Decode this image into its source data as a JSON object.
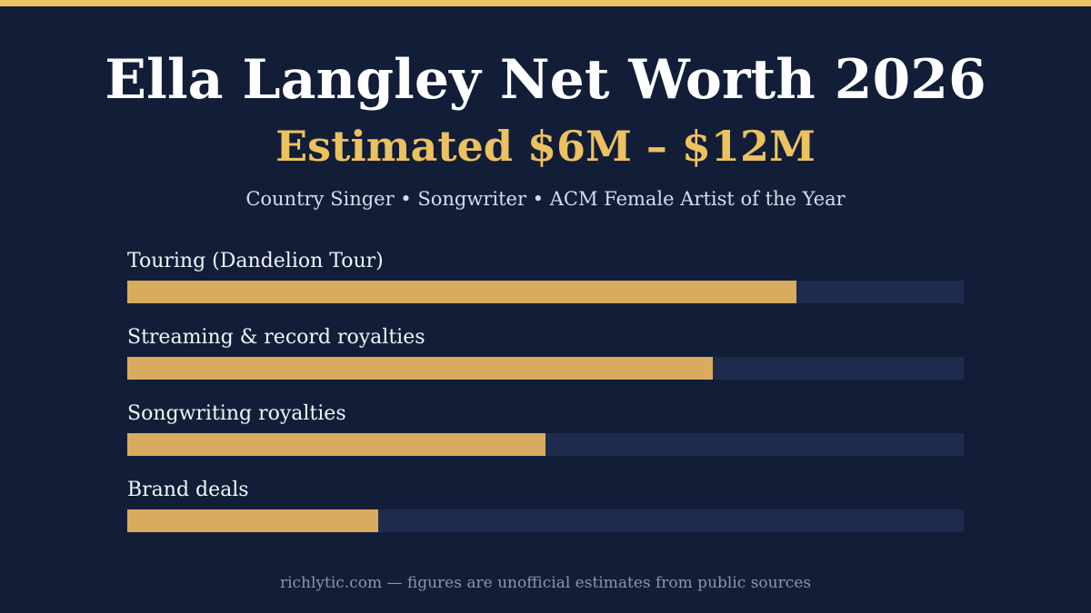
{
  "header": {
    "title": "Ella Langley Net Worth 2026",
    "subtitle": "Estimated $6M – $12M",
    "tagline": "Country Singer • Songwriter • ACM Female Artist of the Year"
  },
  "footer": {
    "note": "richlytic.com — figures are unofficial estimates from public sources"
  },
  "colors": {
    "background": "#121e38",
    "accent": "#ecc160",
    "bar_fill": "#d8ab5e",
    "bar_track": "#1e2b4c",
    "label_text": "#f2f4f8"
  },
  "chart_data": {
    "type": "bar",
    "orientation": "horizontal",
    "categories": [
      "Touring (Dandelion Tour)",
      "Streaming & record royalties",
      "Songwriting royalties",
      "Brand deals"
    ],
    "values": [
      0.8,
      0.7,
      0.5,
      0.3
    ],
    "value_scale": "fraction of full bar",
    "xlim": [
      0,
      1
    ],
    "grid": false,
    "legend": "none"
  }
}
